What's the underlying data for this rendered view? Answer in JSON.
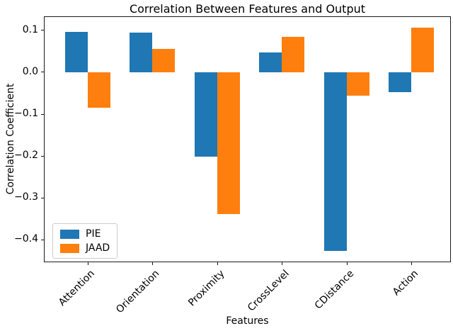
{
  "chart_data": {
    "type": "bar",
    "title": "Correlation Between Features and Output",
    "xlabel": "Features",
    "ylabel": "Correlation Coefficient",
    "categories": [
      "Attention",
      "Orientation",
      "Proximity",
      "CrossLevel",
      "CDistance",
      "Action"
    ],
    "series": [
      {
        "name": "PIE",
        "color": "#1f77b4",
        "values": [
          0.097,
          0.094,
          -0.201,
          0.048,
          -0.427,
          -0.047
        ]
      },
      {
        "name": "JAAD",
        "color": "#ff7f0e",
        "values": [
          -0.085,
          0.055,
          -0.338,
          0.085,
          -0.056,
          0.107
        ]
      }
    ],
    "ylim": [
      -0.454,
      0.134
    ],
    "yticks": [
      0.1,
      0.0,
      -0.1,
      -0.2,
      -0.3,
      -0.4
    ],
    "ytick_labels": [
      "0.1",
      "0.0",
      "−0.1",
      "−0.2",
      "−0.3",
      "−0.4"
    ],
    "bar_width_fraction": 0.35,
    "x_tick_rotation_deg": 45,
    "grid": false,
    "legend_position": "lower left"
  }
}
